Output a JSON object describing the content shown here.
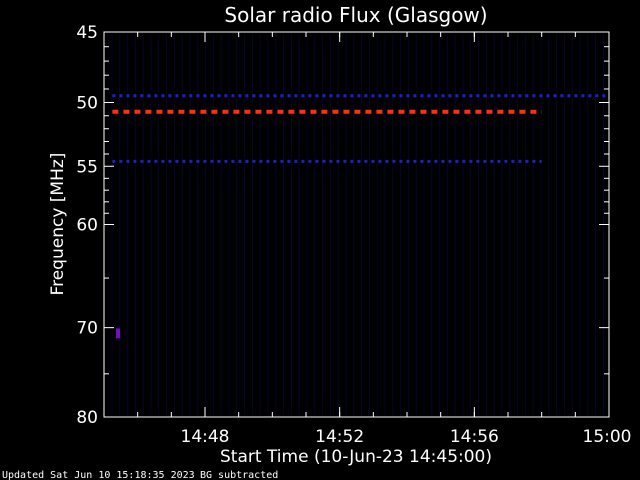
{
  "chart_data": {
    "type": "heatmap",
    "title": "Solar radio Flux (Glasgow)",
    "xlabel": "Start Time (10-Jun-23 14:45:00)",
    "ylabel": "Frequency [MHz]",
    "x_unit": "minutes",
    "xlim": [
      "14:45",
      "15:00"
    ],
    "ylim": [
      45,
      80
    ],
    "y_ticks": [
      45,
      50,
      55,
      60,
      70,
      80
    ],
    "x_ticks": [
      "14:48",
      "14:52",
      "14:56",
      "15:00"
    ],
    "background_color": "#000000",
    "grid": false,
    "bands": [
      {
        "frequency": 49.5,
        "start": "14:45:15",
        "end": "15:00:00",
        "color": "#2020d0",
        "intensity": "low"
      },
      {
        "frequency": 50.7,
        "start": "14:45:15",
        "end": "14:58:00",
        "color": "#ff3010",
        "intensity": "high"
      },
      {
        "frequency": 54.6,
        "start": "14:45:15",
        "end": "14:58:00",
        "color": "#2020c0",
        "intensity": "low"
      }
    ],
    "spots": [
      {
        "frequency": 70.6,
        "time": "14:45:25",
        "color": "#7010c0"
      }
    ]
  },
  "footer": {
    "updated": "Updated Sat Jun 10 15:18:35 2023",
    "note": "BG subtracted"
  }
}
